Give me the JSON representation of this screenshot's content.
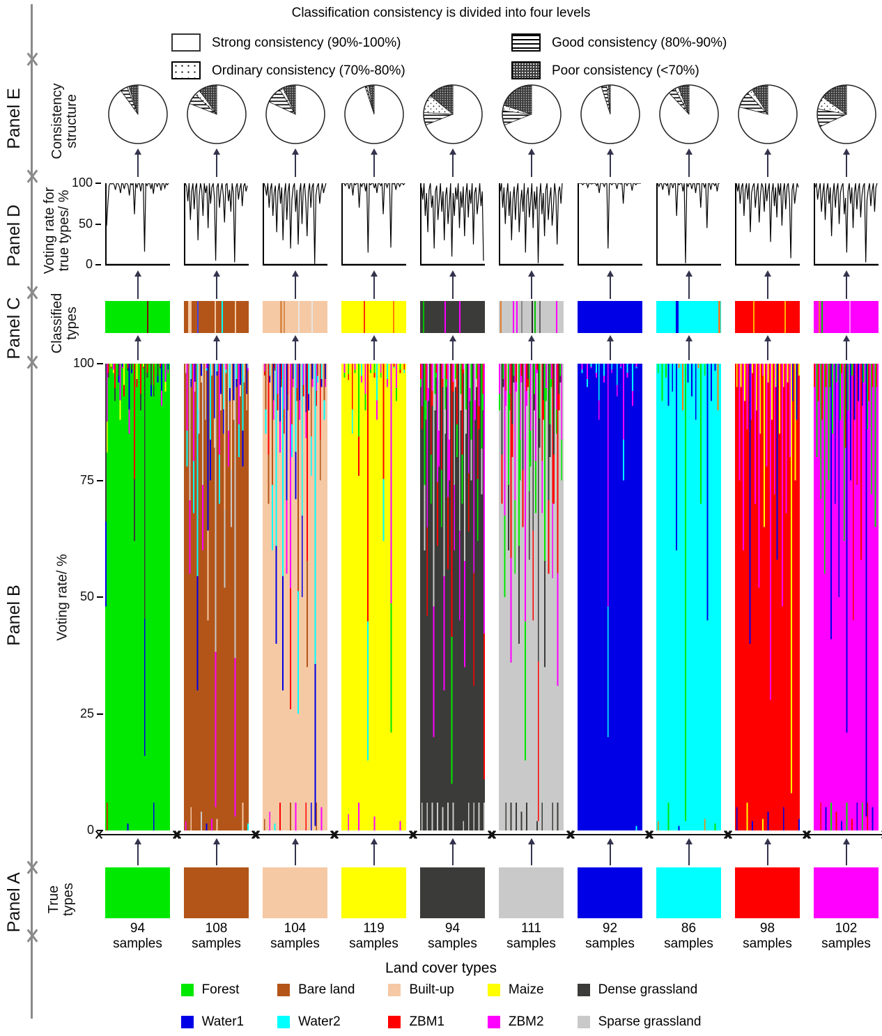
{
  "title": "Classification consistency is divided into four levels",
  "consistency_legend": {
    "strong": "Strong consistency (90%-100%)",
    "good": "Good consistency (80%-90%)",
    "ordinary": "Ordinary consistency (70%-80%)",
    "poor": "Poor consistency (<70%)"
  },
  "panels": {
    "E": {
      "label": "Panel E",
      "axis": "Consistency\nstructure"
    },
    "D": {
      "label": "Panel D",
      "axis": "Voting rate for\ntrue types/ %"
    },
    "C": {
      "label": "Panel C",
      "axis": "Classified\ntypes"
    },
    "B": {
      "label": "Panel B",
      "axis": "Voting rate/ %"
    },
    "A": {
      "label": "Panel A",
      "axis": "True\ntypes"
    }
  },
  "land_cover_title": "Land cover types",
  "samples_word": "samples",
  "chart_data": {
    "type": "composite",
    "description": "Per land-cover type: consistency pie (percent), per-sample voting rate for true type (drives Panel D line and Panel B stacked bars), classified-type strip streaks, sample counts.",
    "d_axis": {
      "label": "Voting rate for true types/ %",
      "ticks": [
        100,
        50,
        0
      ],
      "ylim": [
        0,
        100
      ]
    },
    "b_axis": {
      "label": "Voting rate/ %",
      "ticks": [
        100,
        75,
        50,
        25,
        0
      ],
      "ylim": [
        0,
        100
      ]
    },
    "pie_levels": [
      "strong",
      "good",
      "ordinary",
      "poor"
    ],
    "types": [
      {
        "name": "Forest",
        "color": "#00E800",
        "samples": 94,
        "pie": {
          "strong": 90,
          "good": 4,
          "ordinary": 1,
          "poor": 5
        },
        "confusers": [
          "#3B3B39",
          "#FF00FF",
          "#FF0000",
          "#0000E6",
          "#FFFF00"
        ],
        "streaks": [
          [
            0.64,
            "#7a1010",
            2
          ]
        ],
        "voting": [
          48,
          75,
          97,
          100,
          99,
          100,
          98,
          92,
          100,
          100,
          96,
          88,
          100,
          99,
          93,
          100,
          100,
          97,
          85,
          100,
          98,
          100,
          62,
          100,
          95,
          100,
          100,
          90,
          100,
          99,
          16,
          100,
          97,
          100,
          100,
          93,
          100,
          87,
          100,
          100,
          96,
          100,
          99,
          91,
          100,
          100,
          94,
          100,
          98,
          100
        ]
      },
      {
        "name": "Bare land",
        "color": "#B35519",
        "samples": 108,
        "pie": {
          "strong": 81,
          "good": 6,
          "ordinary": 3,
          "poor": 10
        },
        "confusers": [
          "#00FFFF",
          "#F5C9A4",
          "#FF00FF",
          "#0000E6",
          "#C9C9C9"
        ],
        "streaks": [
          [
            0.06,
            "#F5C9A4",
            5
          ],
          [
            0.2,
            "#4444EE",
            2
          ],
          [
            0.47,
            "#F5C9A4",
            2
          ],
          [
            0.58,
            "#00FFFF",
            2
          ],
          [
            0.78,
            "#F5C9A4",
            2
          ]
        ],
        "voting": [
          100,
          96,
          78,
          100,
          55,
          90,
          100,
          68,
          94,
          100,
          30,
          85,
          100,
          92,
          60,
          100,
          88,
          97,
          45,
          100,
          75,
          95,
          100,
          82,
          5,
          95,
          100,
          70,
          90,
          100,
          85,
          52,
          98,
          100,
          78,
          92,
          65,
          100,
          88,
          3,
          95,
          100,
          80,
          93,
          100,
          72,
          96,
          100,
          90,
          97
        ]
      },
      {
        "name": "Built-up",
        "color": "#F5C9A4",
        "samples": 104,
        "pie": {
          "strong": 82,
          "good": 9,
          "ordinary": 2,
          "poor": 7
        },
        "confusers": [
          "#00FFFF",
          "#FF00FF",
          "#B35519",
          "#0000E6",
          "#FF0000"
        ],
        "streaks": [
          [
            0.27,
            "#D98A4A",
            3
          ],
          [
            0.32,
            "#D98A4A",
            2
          ],
          [
            0.55,
            "#E6E6E6",
            2
          ],
          [
            0.75,
            "#E6E6E6",
            2
          ]
        ],
        "voting": [
          100,
          95,
          85,
          100,
          70,
          92,
          100,
          60,
          88,
          97,
          40,
          90,
          100,
          75,
          95,
          30,
          85,
          100,
          55,
          90,
          100,
          20,
          80,
          95,
          100,
          65,
          92,
          25,
          88,
          100,
          50,
          93,
          100,
          78,
          35,
          90,
          100,
          70,
          95,
          100,
          1,
          85,
          96,
          100,
          75,
          90,
          100,
          88,
          95,
          100
        ]
      },
      {
        "name": "Maize",
        "color": "#FFFF00",
        "samples": 119,
        "pie": {
          "strong": 95,
          "good": 1,
          "ordinary": 1,
          "poor": 3
        },
        "confusers": [
          "#FF0000",
          "#00E800",
          "#FF00FF",
          "#00FFFF"
        ],
        "streaks": [
          [
            0.34,
            "#FF3000",
            2
          ],
          [
            0.8,
            "#FF8000",
            2
          ]
        ],
        "voting": [
          100,
          100,
          97,
          100,
          100,
          93,
          100,
          100,
          85,
          100,
          98,
          100,
          100,
          70,
          100,
          96,
          100,
          100,
          90,
          100,
          15,
          100,
          98,
          100,
          100,
          94,
          100,
          88,
          100,
          100,
          97,
          100,
          62,
          100,
          100,
          95,
          100,
          100,
          21,
          100,
          99,
          100,
          92,
          100,
          100,
          96,
          100,
          100,
          98,
          100
        ]
      },
      {
        "name": "Dense grassland",
        "color": "#3B3B39",
        "samples": 94,
        "pie": {
          "strong": 69,
          "good": 7,
          "ordinary": 10,
          "poor": 14
        },
        "confusers": [
          "#FF0000",
          "#FF00FF",
          "#C9C9C9",
          "#00E800"
        ],
        "streaks": [
          [
            0.04,
            "#00C000",
            2
          ],
          [
            0.38,
            "#FF00FF",
            2
          ],
          [
            0.6,
            "#FF00FF",
            2
          ]
        ],
        "voting": [
          95,
          80,
          100,
          60,
          88,
          40,
          92,
          100,
          70,
          85,
          20,
          90,
          97,
          55,
          78,
          100,
          65,
          90,
          30,
          85,
          95,
          50,
          75,
          100,
          10,
          88,
          60,
          95,
          80,
          100,
          45,
          90,
          70,
          96,
          35,
          85,
          100,
          58,
          92,
          75,
          100,
          25,
          88,
          95,
          62,
          80,
          100,
          72,
          90,
          5
        ]
      },
      {
        "name": "Sparse grassland",
        "color": "#C9C9C9",
        "samples": 111,
        "pie": {
          "strong": 69,
          "good": 8,
          "ordinary": 3,
          "poor": 20
        },
        "confusers": [
          "#FF00FF",
          "#FF0000",
          "#3B3B39",
          "#00E800"
        ],
        "streaks": [
          [
            0.02,
            "#E08030",
            2
          ],
          [
            0.22,
            "#FF00FF",
            2
          ],
          [
            0.27,
            "#FF00FF",
            2
          ],
          [
            0.34,
            "#888888",
            2
          ],
          [
            0.5,
            "#222222",
            2
          ],
          [
            0.55,
            "#00C000",
            2
          ],
          [
            0.62,
            "#666666",
            2
          ],
          [
            0.88,
            "#FF00FF",
            2
          ]
        ],
        "voting": [
          90,
          100,
          70,
          95,
          50,
          85,
          100,
          60,
          90,
          30,
          80,
          96,
          55,
          88,
          100,
          40,
          75,
          92,
          65,
          100,
          15,
          85,
          95,
          58,
          78,
          100,
          45,
          90,
          68,
          96,
          2,
          82,
          100,
          62,
          88,
          35,
          92,
          100,
          55,
          80,
          95,
          48,
          70,
          100,
          85,
          25,
          90,
          96,
          75,
          100
        ]
      },
      {
        "name": "Water1",
        "color": "#0000E6",
        "samples": 92,
        "pie": {
          "strong": 95,
          "good": 3,
          "ordinary": 1,
          "poor": 1
        },
        "confusers": [
          "#00FFFF",
          "#FF00FF"
        ],
        "streaks": [],
        "voting": [
          100,
          100,
          100,
          98,
          100,
          100,
          100,
          95,
          100,
          100,
          99,
          100,
          100,
          100,
          97,
          100,
          88,
          100,
          100,
          100,
          96,
          100,
          100,
          20,
          100,
          100,
          98,
          100,
          100,
          100,
          93,
          100,
          100,
          99,
          100,
          75,
          100,
          100,
          97,
          100,
          100,
          100,
          91,
          100,
          100,
          98,
          100,
          100,
          100,
          100
        ]
      },
      {
        "name": "Water2",
        "color": "#00FFFF",
        "samples": 86,
        "pie": {
          "strong": 88,
          "good": 4,
          "ordinary": 2,
          "poor": 6
        },
        "confusers": [
          "#0000E6",
          "#00E800",
          "#FF8000"
        ],
        "streaks": [
          [
            0.3,
            "#0000E6",
            4
          ],
          [
            0.96,
            "#E08030",
            3
          ]
        ],
        "voting": [
          100,
          96,
          100,
          100,
          92,
          100,
          100,
          97,
          100,
          85,
          100,
          100,
          94,
          100,
          100,
          60,
          100,
          98,
          100,
          100,
          90,
          100,
          2,
          100,
          96,
          100,
          100,
          93,
          100,
          100,
          88,
          100,
          99,
          100,
          70,
          100,
          100,
          95,
          100,
          45,
          100,
          100,
          92,
          100,
          100,
          97,
          100,
          90,
          100,
          100
        ]
      },
      {
        "name": "ZBM1",
        "color": "#FF0000",
        "samples": 98,
        "pie": {
          "strong": 79,
          "good": 9,
          "ordinary": 3,
          "poor": 9
        },
        "confusers": [
          "#FF00FF",
          "#FFFF00",
          "#0000E6"
        ],
        "streaks": [
          [
            0.28,
            "#FFB000",
            2
          ],
          [
            0.76,
            "#FFB000",
            2
          ]
        ],
        "voting": [
          100,
          90,
          100,
          75,
          95,
          100,
          60,
          92,
          100,
          80,
          100,
          40,
          88,
          96,
          100,
          70,
          90,
          100,
          52,
          85,
          100,
          95,
          65,
          100,
          78,
          92,
          100,
          28,
          88,
          100,
          72,
          95,
          58,
          100,
          85,
          100,
          48,
          90,
          100,
          68,
          96,
          100,
          80,
          8,
          92,
          100,
          75,
          88,
          100,
          95
        ]
      },
      {
        "name": "ZBM2",
        "color": "#FF00FF",
        "samples": 102,
        "pie": {
          "strong": 68,
          "good": 10,
          "ordinary": 7,
          "poor": 15
        },
        "confusers": [
          "#FF0000",
          "#0000E6",
          "#00E800"
        ],
        "streaks": [
          [
            0.07,
            "#E08030",
            2
          ],
          [
            0.12,
            "#00C000",
            2
          ],
          [
            0.55,
            "#FF80FF",
            2
          ]
        ],
        "voting": [
          95,
          100,
          80,
          92,
          100,
          65,
          88,
          100,
          55,
          90,
          100,
          75,
          95,
          35,
          85,
          100,
          70,
          92,
          100,
          50,
          88,
          96,
          100,
          62,
          82,
          15,
          90,
          100,
          75,
          95,
          45,
          88,
          100,
          68,
          92,
          100,
          58,
          85,
          96,
          100,
          3,
          80,
          92,
          100,
          72,
          90,
          100,
          65,
          95,
          100
        ]
      }
    ]
  }
}
